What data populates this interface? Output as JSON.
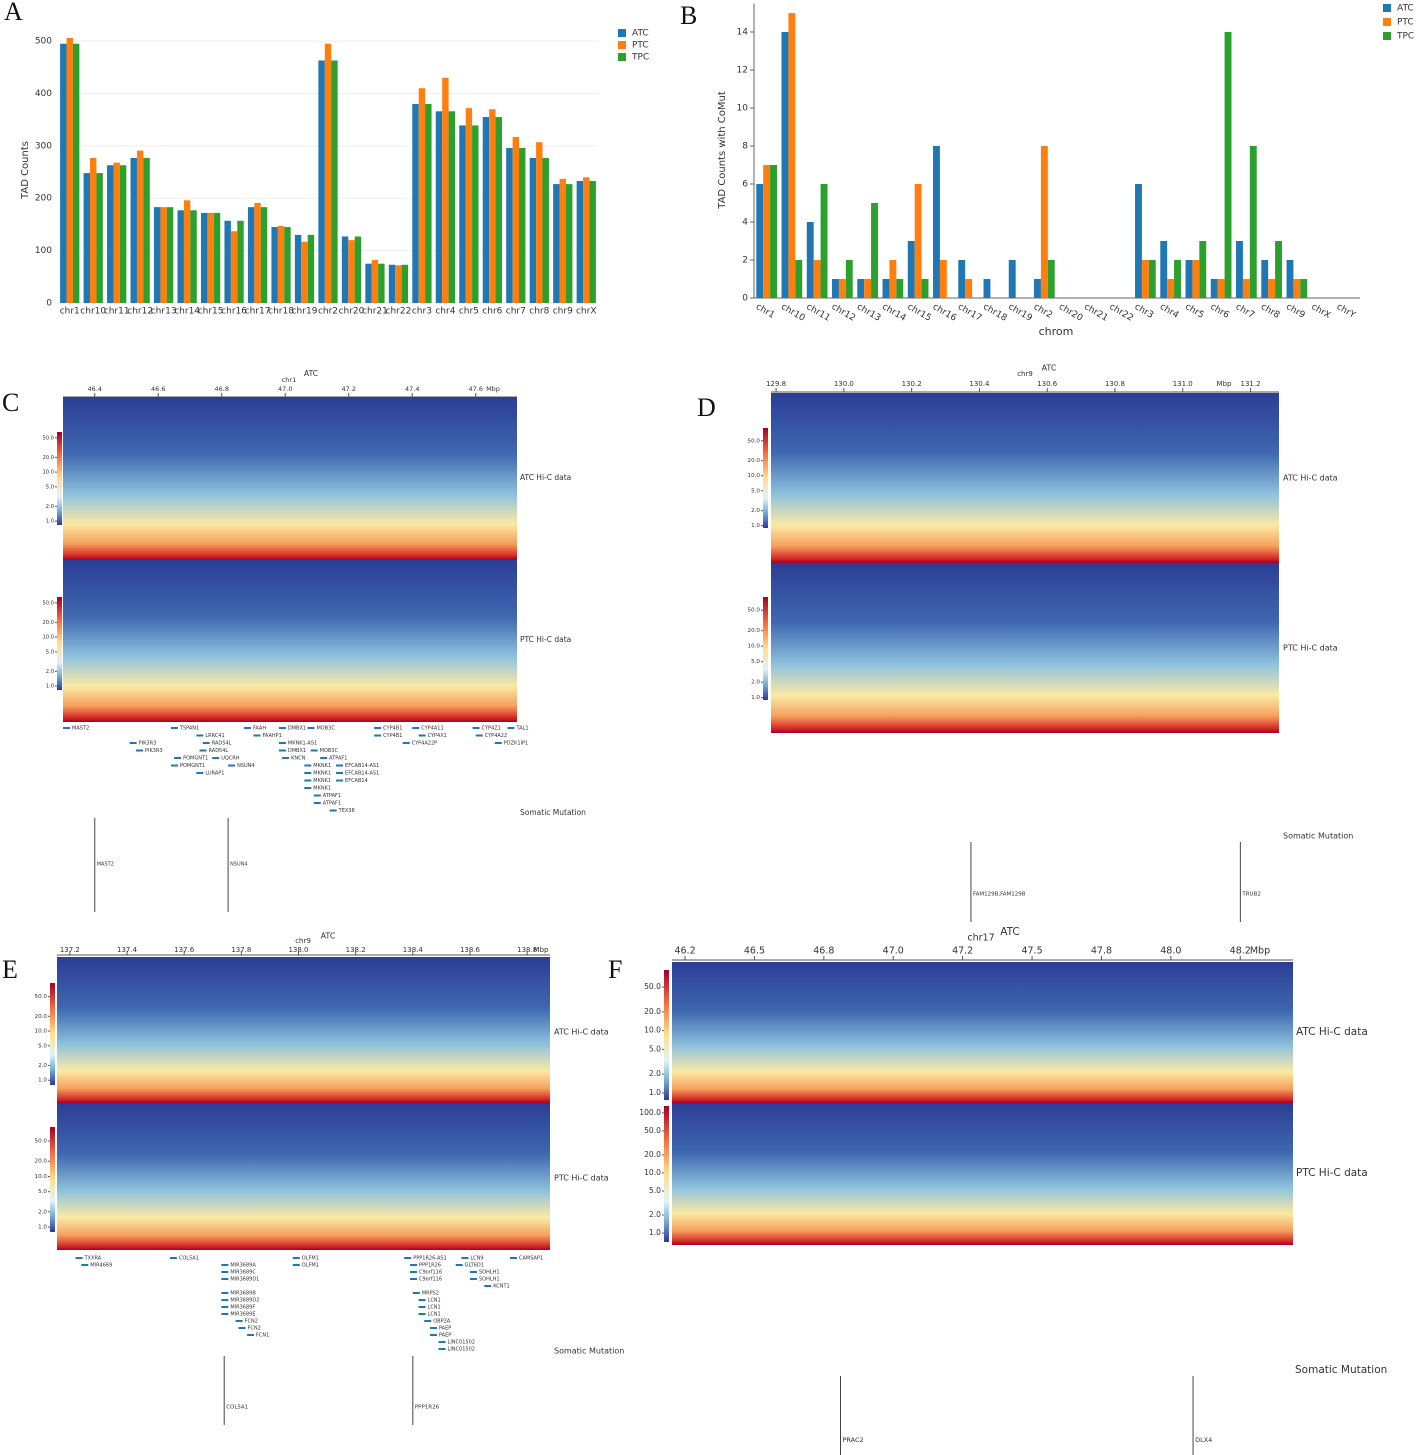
{
  "chart_data": [
    {
      "type": "bar",
      "label": "A",
      "ylabel": "TAD Counts",
      "grid": true,
      "legend": "top-right",
      "categories": [
        "chr1",
        "chr10",
        "chr11",
        "chr12",
        "chr13",
        "chr14",
        "chr15",
        "chr16",
        "chr17",
        "chr18",
        "chr19",
        "chr2",
        "chr20",
        "chr21",
        "chr22",
        "chr3",
        "chr4",
        "chr5",
        "chr6",
        "chr7",
        "chr8",
        "chr9",
        "chrX"
      ],
      "series": [
        {
          "name": "ATC",
          "color": "#1f77b4",
          "values": [
            495,
            248,
            263,
            277,
            183,
            177,
            172,
            157,
            183,
            145,
            130,
            463,
            127,
            75,
            73,
            380,
            366,
            339,
            355,
            296,
            277,
            227,
            233
          ]
        },
        {
          "name": "PTC",
          "color": "#ff7f0e",
          "values": [
            506,
            277,
            268,
            291,
            183,
            196,
            172,
            137,
            191,
            147,
            117,
            495,
            120,
            82,
            72,
            410,
            430,
            372,
            370,
            317,
            307,
            237,
            240
          ]
        },
        {
          "name": "TPC",
          "color": "#2ca02c",
          "values": [
            495,
            248,
            263,
            277,
            183,
            177,
            172,
            157,
            183,
            145,
            130,
            463,
            127,
            75,
            73,
            380,
            366,
            339,
            355,
            296,
            277,
            227,
            233
          ]
        }
      ],
      "ylim": [
        0,
        525
      ],
      "yticks": [
        0,
        100,
        200,
        300,
        400,
        500
      ]
    },
    {
      "type": "bar",
      "label": "B",
      "xlabel": "chrom",
      "ylabel": "TAD Counts with CoMut",
      "grid": false,
      "legend": "top-right",
      "rotate_labels": true,
      "categories": [
        "chr1",
        "chr10",
        "chr11",
        "chr12",
        "chr13",
        "chr14",
        "chr15",
        "chr16",
        "chr17",
        "chr18",
        "chr19",
        "chr2",
        "chr20",
        "chr21",
        "chr22",
        "chr3",
        "chr4",
        "chr5",
        "chr6",
        "chr7",
        "chr8",
        "chr9",
        "chrX",
        "chrY"
      ],
      "series": [
        {
          "name": "ATC",
          "color": "#1f77b4",
          "values": [
            6,
            14,
            4,
            1,
            1,
            1,
            3,
            8,
            2,
            1,
            2,
            1,
            0,
            0,
            0,
            6,
            3,
            2,
            1,
            3,
            2,
            2,
            0,
            0
          ]
        },
        {
          "name": "PTC",
          "color": "#ff7f0e",
          "values": [
            7,
            15,
            2,
            1,
            1,
            2,
            6,
            2,
            1,
            0,
            0,
            8,
            0,
            0,
            0,
            2,
            1,
            2,
            1,
            1,
            1,
            1,
            0,
            0
          ]
        },
        {
          "name": "TPC",
          "color": "#2ca02c",
          "values": [
            7,
            2,
            6,
            2,
            5,
            1,
            1,
            0,
            0,
            0,
            0,
            2,
            0,
            0,
            0,
            2,
            2,
            3,
            14,
            8,
            3,
            1,
            0,
            0
          ]
        }
      ],
      "ylim": [
        0,
        15.5
      ],
      "yticks": [
        0,
        2,
        4,
        6,
        8,
        10,
        12,
        14
      ]
    },
    {
      "type": "hic",
      "label": "C",
      "title": "ATC",
      "chrom": "chr1",
      "unit": "Mbp",
      "xlim": [
        46.3,
        47.73
      ],
      "xticks": [
        {
          "value": 46.4,
          "label": "46.4"
        },
        {
          "value": 46.6,
          "label": "46.6"
        },
        {
          "value": 46.8,
          "label": "46.8"
        },
        {
          "value": 47.0,
          "label": "47.0"
        },
        {
          "value": 47.2,
          "label": "47.2"
        },
        {
          "value": 47.4,
          "label": "47.4"
        },
        {
          "value": 47.6,
          "label": "47.6"
        }
      ],
      "tracks": [
        {
          "name": "ATC Hi-C data",
          "log": true,
          "clim": [
            0.83,
            66
          ],
          "cticks": [
            {
              "value": 1,
              "label": "1.0"
            },
            {
              "value": 2,
              "label": "2.0"
            },
            {
              "value": 5,
              "label": "5.0"
            },
            {
              "value": 10,
              "label": "10.0"
            },
            {
              "value": 20,
              "label": "20.0"
            },
            {
              "value": 50,
              "label": "50.0"
            }
          ]
        },
        {
          "name": "PTC Hi-C data",
          "log": true,
          "clim": [
            0.83,
            66
          ],
          "cticks": [
            {
              "value": 1,
              "label": "1.0"
            },
            {
              "value": 2,
              "label": "2.0"
            },
            {
              "value": 5,
              "label": "5.0"
            },
            {
              "value": 10,
              "label": "10.0"
            },
            {
              "value": 20,
              "label": "20.0"
            },
            {
              "value": 50,
              "label": "50.0"
            }
          ]
        }
      ],
      "genes": [
        {
          "name": "MAST2",
          "start": 46.3
        },
        {
          "name": "TSPAN1",
          "start": 46.64
        },
        {
          "name": "LRRC41",
          "start": 46.72
        },
        {
          "name": "FAAH",
          "start": 46.87
        },
        {
          "name": "DMBX1",
          "start": 46.98
        },
        {
          "name": "MOB3C",
          "start": 47.07
        },
        {
          "name": "CYP4B1",
          "start": 47.28
        },
        {
          "name": "CYP4A11",
          "start": 47.4
        },
        {
          "name": "CYP4Z1",
          "start": 47.59
        },
        {
          "name": "TAL1",
          "start": 47.7
        },
        {
          "name": "PIK3R3",
          "start": 46.51
        },
        {
          "name": "RAD54L",
          "start": 46.74
        },
        {
          "name": "FAAHP1",
          "start": 46.9
        },
        {
          "name": "MKNK1-AS1",
          "start": 46.98
        },
        {
          "name": "CYP4B1",
          "start": 47.28
        },
        {
          "name": "CYP4X1",
          "start": 47.42
        },
        {
          "name": "CYP4A22",
          "start": 47.6
        },
        {
          "name": "PIK3R3",
          "start": 46.53
        },
        {
          "name": "RAD54L",
          "start": 46.73
        },
        {
          "name": "DMBX1",
          "start": 46.98
        },
        {
          "name": "MOB3C",
          "start": 47.08
        },
        {
          "name": "CYP4A22P",
          "start": 47.37
        },
        {
          "name": "PDZK1IP1",
          "start": 47.66
        },
        {
          "name": "POMGNT1",
          "start": 46.65
        },
        {
          "name": "UQCRH",
          "start": 46.77
        },
        {
          "name": "KNCN",
          "start": 46.99
        },
        {
          "name": "ATPAF1",
          "start": 47.11
        },
        {
          "name": "POMGNT1",
          "start": 46.64
        },
        {
          "name": "NSUN4",
          "start": 46.82
        },
        {
          "name": "MKNK1",
          "start": 47.06
        },
        {
          "name": "EFCAB14-AS1",
          "start": 47.16
        },
        {
          "name": "LURAP1",
          "start": 46.72
        },
        {
          "name": "MKNK1",
          "start": 47.06
        },
        {
          "name": "EFCAB14-AS1",
          "start": 47.16
        },
        {
          "name": "MKNK1",
          "start": 47.06
        },
        {
          "name": "EFCAB14",
          "start": 47.16
        },
        {
          "name": "MKNK1",
          "start": 47.06
        },
        {
          "name": "ATPAF1",
          "start": 47.09
        },
        {
          "name": "ATPAF1",
          "start": 47.09
        },
        {
          "name": "TEX38",
          "start": 47.14
        }
      ],
      "mutation_title": "Somatic Mutation",
      "mutations": [
        {
          "name": "MAST2",
          "position": 46.4
        },
        {
          "name": "NSUN4",
          "position": 46.82
        }
      ]
    },
    {
      "type": "hic",
      "label": "D",
      "title": "ATC",
      "chrom": "chr9",
      "unit": "Mbp",
      "xlim": [
        129.785,
        131.284
      ],
      "xticks": [
        {
          "value": 129.8,
          "label": "129.8"
        },
        {
          "value": 130.0,
          "label": "130.0"
        },
        {
          "value": 130.2,
          "label": "130.2"
        },
        {
          "value": 130.4,
          "label": "130.4"
        },
        {
          "value": 130.6,
          "label": "130.6"
        },
        {
          "value": 130.8,
          "label": "130.8"
        },
        {
          "value": 131.0,
          "label": "131.0"
        },
        {
          "value": 131.2,
          "label": "131.2"
        }
      ],
      "tracks": [
        {
          "name": "ATC Hi-C data",
          "log": true,
          "clim": [
            0.9,
            90
          ],
          "cticks": [
            {
              "value": 1,
              "label": "1.0"
            },
            {
              "value": 2,
              "label": "2.0"
            },
            {
              "value": 5,
              "label": "5.0"
            },
            {
              "value": 10,
              "label": "10.0"
            },
            {
              "value": 20,
              "label": "20.0"
            },
            {
              "value": 50,
              "label": "50.0"
            }
          ]
        },
        {
          "name": "PTC Hi-C data",
          "log": true,
          "clim": [
            0.9,
            90
          ],
          "cticks": [
            {
              "value": 1,
              "label": "1.0"
            },
            {
              "value": 2,
              "label": "2.0"
            },
            {
              "value": 5,
              "label": "5.0"
            },
            {
              "value": 10,
              "label": "10.0"
            },
            {
              "value": 20,
              "label": "20.0"
            },
            {
              "value": 50,
              "label": "50.0"
            }
          ]
        }
      ],
      "mutation_title": "Somatic Mutation",
      "mutations": [
        {
          "name": "FAM129B,FAM129B",
          "position": 130.375
        },
        {
          "name": "TRUB2",
          "position": 131.17
        }
      ]
    },
    {
      "type": "hic",
      "label": "E",
      "title": "ATC",
      "chrom": "chr9",
      "unit": "Mbp",
      "xlim": [
        137.155,
        138.88
      ],
      "xticks": [
        {
          "value": 137.2,
          "label": "137.2"
        },
        {
          "value": 137.4,
          "label": "137.4"
        },
        {
          "value": 137.6,
          "label": "137.6"
        },
        {
          "value": 137.8,
          "label": "137.8"
        },
        {
          "value": 138.0,
          "label": "138.0"
        },
        {
          "value": 138.2,
          "label": "138.2"
        },
        {
          "value": 138.4,
          "label": "138.4"
        },
        {
          "value": 138.6,
          "label": "138.6"
        },
        {
          "value": 138.8,
          "label": "138.8"
        }
      ],
      "tracks": [
        {
          "name": "ATC Hi-C data",
          "log": true,
          "clim": [
            0.8,
            95
          ],
          "cticks": [
            {
              "value": 1,
              "label": "1.0"
            },
            {
              "value": 2,
              "label": "2.0"
            },
            {
              "value": 5,
              "label": "5.0"
            },
            {
              "value": 10,
              "label": "10.0"
            },
            {
              "value": 20,
              "label": "20.0"
            },
            {
              "value": 50,
              "label": "50.0"
            }
          ]
        },
        {
          "name": "PTC Hi-C data",
          "log": true,
          "clim": [
            0.8,
            95
          ],
          "cticks": [
            {
              "value": 1,
              "label": "1.0"
            },
            {
              "value": 2,
              "label": "2.0"
            },
            {
              "value": 5,
              "label": "5.0"
            },
            {
              "value": 10,
              "label": "10.0"
            },
            {
              "value": 20,
              "label": "20.0"
            },
            {
              "value": 50,
              "label": "50.0"
            }
          ]
        }
      ],
      "genes": [
        {
          "name": "TXXRA",
          "start": 137.22
        },
        {
          "name": "COL5A1",
          "start": 137.55
        },
        {
          "name": "OLFM1",
          "start": 137.98
        },
        {
          "name": "PPP1R26-AS1",
          "start": 138.37
        },
        {
          "name": "LCN9",
          "start": 138.57
        },
        {
          "name": "CAMSAP1",
          "start": 138.74
        },
        {
          "name": "MIR4669",
          "start": 137.24
        },
        {
          "name": "MIR3689A",
          "start": 137.73
        },
        {
          "name": "OLFM1",
          "start": 137.98
        },
        {
          "name": "PPP1R26",
          "start": 138.39
        },
        {
          "name": "GLT6D1",
          "start": 138.55
        },
        {
          "name": "MIR3689C",
          "start": 137.73
        },
        {
          "name": "C9orf116",
          "start": 138.39
        },
        {
          "name": "SOHLH1",
          "start": 138.6
        },
        {
          "name": "MIR3689D1",
          "start": 137.73
        },
        {
          "name": "C9orf116",
          "start": 138.39
        },
        {
          "name": "SOHLH1",
          "start": 138.6
        },
        {
          "name": "KCNT1",
          "start": 138.65
        },
        {
          "name": "MIR3689B",
          "start": 137.73
        },
        {
          "name": "MRPS2",
          "start": 138.4
        },
        {
          "name": "MIR3689D2",
          "start": 137.73
        },
        {
          "name": "LCN1",
          "start": 138.42
        },
        {
          "name": "MIR3689F",
          "start": 137.73
        },
        {
          "name": "LCN1",
          "start": 138.42
        },
        {
          "name": "MIR3689E",
          "start": 137.73
        },
        {
          "name": "LCN1",
          "start": 138.42
        },
        {
          "name": "FCN2",
          "start": 137.78
        },
        {
          "name": "OBP2A",
          "start": 138.44
        },
        {
          "name": "FCN2",
          "start": 137.79
        },
        {
          "name": "PAEP",
          "start": 138.46
        },
        {
          "name": "FCN1",
          "start": 137.82
        },
        {
          "name": "PAEP",
          "start": 138.46
        },
        {
          "name": "LINC01502",
          "start": 138.49
        },
        {
          "name": "LINC01502",
          "start": 138.49
        }
      ],
      "mutation_title": "Somatic Mutation",
      "mutations": [
        {
          "name": "COL5A1",
          "position": 137.74
        },
        {
          "name": "PPP1R26",
          "position": 138.4
        }
      ]
    },
    {
      "type": "hic",
      "label": "F",
      "title": "ATC",
      "chrom": "chr17",
      "unit": "Mbp",
      "xlim": [
        46.203,
        48.44
      ],
      "xticks": [
        {
          "value": 46.25,
          "label": "46.2"
        },
        {
          "value": 46.5,
          "label": "46.5"
        },
        {
          "value": 46.75,
          "label": "46.8"
        },
        {
          "value": 47.0,
          "label": "47.0"
        },
        {
          "value": 47.25,
          "label": "47.2"
        },
        {
          "value": 47.5,
          "label": "47.5"
        },
        {
          "value": 47.75,
          "label": "47.8"
        },
        {
          "value": 48.0,
          "label": "48.0"
        },
        {
          "value": 48.25,
          "label": "48.2"
        }
      ],
      "tracks": [
        {
          "name": "ATC Hi-C data",
          "log": true,
          "clim": [
            0.77,
            94
          ],
          "cticks": [
            {
              "value": 1,
              "label": "1.0"
            },
            {
              "value": 2,
              "label": "2.0"
            },
            {
              "value": 5,
              "label": "5.0"
            },
            {
              "value": 10,
              "label": "10.0"
            },
            {
              "value": 20,
              "label": "20.0"
            },
            {
              "value": 50,
              "label": "50.0"
            }
          ]
        },
        {
          "name": "PTC Hi-C data",
          "log": true,
          "clim": [
            0.71,
            130
          ],
          "cticks": [
            {
              "value": 1,
              "label": "1.0"
            },
            {
              "value": 2,
              "label": "2.0"
            },
            {
              "value": 5,
              "label": "5.0"
            },
            {
              "value": 10,
              "label": "10.0"
            },
            {
              "value": 20,
              "label": "20.0"
            },
            {
              "value": 50,
              "label": "50.0"
            },
            {
              "value": 100,
              "label": "100.0"
            }
          ]
        }
      ],
      "mutation_title": "Somatic Mutation",
      "mutations": [
        {
          "name": "PRAC2",
          "position": 46.81
        },
        {
          "name": "DLX4",
          "position": 48.08
        }
      ]
    }
  ]
}
